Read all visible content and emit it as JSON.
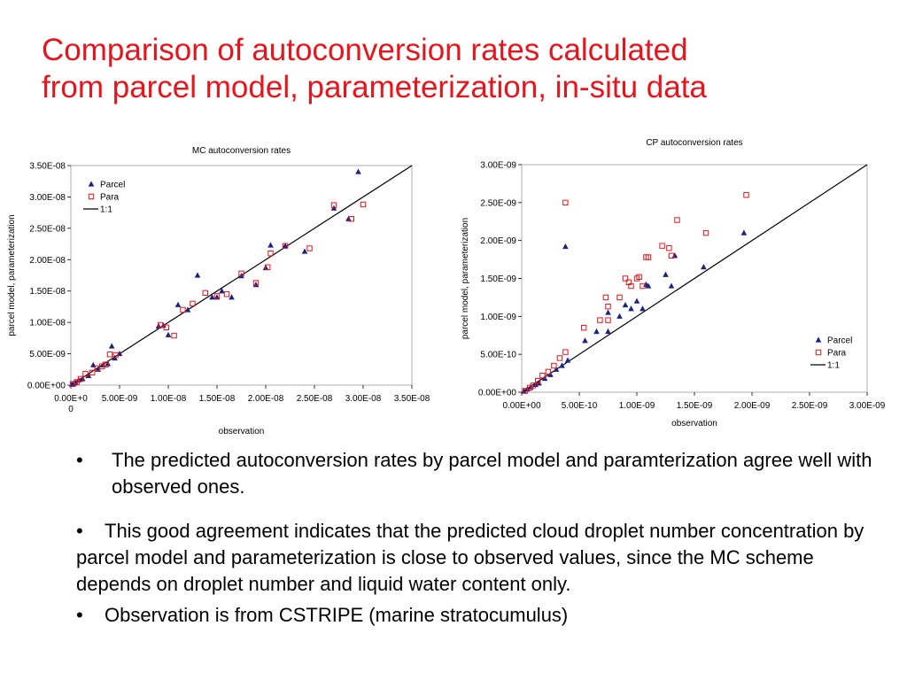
{
  "title_line1": "Comparison of autoconversion rates calculated",
  "title_line2": "from parcel model, parameterization, in-situ data",
  "bullets": [
    "The predicted autoconversion rates by parcel model and paramterization agree well with observed ones.",
    "This good agreement indicates that the predicted cloud droplet number concentration by parcel model and parameterization is close to observed values, since the MC scheme depends on droplet number and liquid water content only.",
    "Observation is from CSTRIPE (marine stratocumulus)"
  ],
  "bullet_symbol": "•",
  "colors": {
    "title": "#e8141c",
    "parcel": "#1a237e",
    "para": "#e8141c",
    "line": "#000000"
  },
  "chart_data": [
    {
      "type": "scatter",
      "title": "MC autoconversion rates",
      "xlabel": "observation",
      "ylabel": "parcel model, parameterization",
      "xlim": [
        0,
        3.5e-08
      ],
      "ylim": [
        0,
        3.5e-08
      ],
      "xticks": [
        "0.00E+0\n0",
        "5.00E-09",
        "1.00E-08",
        "1.50E-08",
        "2.00E-08",
        "2.50E-08",
        "3.00E-08",
        "3.50E-08"
      ],
      "yticks": [
        "0.00E+00",
        "5.00E-09",
        "1.00E-08",
        "1.50E-08",
        "2.00E-08",
        "2.50E-08",
        "3.00E-08",
        "3.50E-08"
      ],
      "legend": "top-left",
      "series": [
        {
          "name": "Parcel",
          "marker": "triangle",
          "points": [
            [
              1e-10,
              1e-10
            ],
            [
              3e-10,
              2e-10
            ],
            [
              5e-10,
              4e-10
            ],
            [
              8e-10,
              8e-10
            ],
            [
              1.2e-09,
              1e-09
            ],
            [
              1.8e-09,
              1.5e-09
            ],
            [
              2.3e-09,
              3.2e-09
            ],
            [
              2.8e-09,
              2.5e-09
            ],
            [
              3.3e-09,
              3.2e-09
            ],
            [
              3.8e-09,
              3.4e-09
            ],
            [
              4.2e-09,
              6.2e-09
            ],
            [
              4.5e-09,
              4.3e-09
            ],
            [
              5e-09,
              5e-09
            ],
            [
              9e-09,
              9.4e-09
            ],
            [
              9.5e-09,
              9.5e-09
            ],
            [
              1e-08,
              8e-09
            ],
            [
              1.1e-08,
              1.28e-08
            ],
            [
              1.2e-08,
              1.2e-08
            ],
            [
              1.3e-08,
              1.75e-08
            ],
            [
              1.45e-08,
              1.4e-08
            ],
            [
              1.5e-08,
              1.4e-08
            ],
            [
              1.55e-08,
              1.5e-08
            ],
            [
              1.65e-08,
              1.4e-08
            ],
            [
              1.75e-08,
              1.74e-08
            ],
            [
              1.9e-08,
              1.6e-08
            ],
            [
              2e-08,
              1.87e-08
            ],
            [
              2.05e-08,
              2.23e-08
            ],
            [
              2.2e-08,
              2.22e-08
            ],
            [
              2.4e-08,
              2.13e-08
            ],
            [
              2.7e-08,
              2.82e-08
            ],
            [
              2.85e-08,
              2.65e-08
            ],
            [
              2.95e-08,
              3.4e-08
            ]
          ]
        },
        {
          "name": "Para",
          "marker": "square",
          "points": [
            [
              2e-10,
              2e-10
            ],
            [
              6e-10,
              5e-10
            ],
            [
              1e-09,
              1e-09
            ],
            [
              1.5e-09,
              1.8e-09
            ],
            [
              2.2e-09,
              2e-09
            ],
            [
              2.7e-09,
              2.7e-09
            ],
            [
              3.2e-09,
              3e-09
            ],
            [
              3.6e-09,
              3.3e-09
            ],
            [
              4e-09,
              4.9e-09
            ],
            [
              4.6e-09,
              4.8e-09
            ],
            [
              9.2e-09,
              9.6e-09
            ],
            [
              9.8e-09,
              9.2e-09
            ],
            [
              1.06e-08,
              7.9e-09
            ],
            [
              1.15e-08,
              1.2e-08
            ],
            [
              1.25e-08,
              1.3e-08
            ],
            [
              1.38e-08,
              1.47e-08
            ],
            [
              1.5e-08,
              1.42e-08
            ],
            [
              1.6e-08,
              1.45e-08
            ],
            [
              1.75e-08,
              1.78e-08
            ],
            [
              1.9e-08,
              1.63e-08
            ],
            [
              2.02e-08,
              1.88e-08
            ],
            [
              2.05e-08,
              2.1e-08
            ],
            [
              2.2e-08,
              2.22e-08
            ],
            [
              2.45e-08,
              2.18e-08
            ],
            [
              2.7e-08,
              2.87e-08
            ],
            [
              2.88e-08,
              2.65e-08
            ],
            [
              3e-08,
              2.88e-08
            ]
          ]
        }
      ],
      "reference_line": {
        "name": "1:1"
      }
    },
    {
      "type": "scatter",
      "title": "CP autoconversion rates",
      "xlabel": "observation",
      "ylabel": "parcel model, parameterization",
      "xlim": [
        0,
        3e-09
      ],
      "ylim": [
        0,
        3e-09
      ],
      "xticks": [
        "0.00E+00",
        "5.00E-10",
        "1.00E-09",
        "1.50E-09",
        "2.00E-09",
        "2.50E-09",
        "3.00E-09"
      ],
      "yticks": [
        "0.00E+00",
        "5.00E-10",
        "1.00E-09",
        "1.50E-09",
        "2.00E-09",
        "2.50E-09",
        "3.00E-09"
      ],
      "legend": "bottom-right",
      "series": [
        {
          "name": "Parcel",
          "marker": "triangle",
          "points": [
            [
              2e-11,
              1e-11
            ],
            [
              5e-11,
              4e-11
            ],
            [
              8e-11,
              7e-11
            ],
            [
              1.2e-10,
              1e-10
            ],
            [
              1.5e-10,
              1.2e-10
            ],
            [
              2e-10,
              1.8e-10
            ],
            [
              2.5e-10,
              2.3e-10
            ],
            [
              3e-10,
              3e-10
            ],
            [
              3.5e-10,
              3.5e-10
            ],
            [
              4e-10,
              4.2e-10
            ],
            [
              3.8e-10,
              1.92e-09
            ],
            [
              5.5e-10,
              6.8e-10
            ],
            [
              6.5e-10,
              8e-10
            ],
            [
              7.5e-10,
              8e-10
            ],
            [
              7.5e-10,
              1.05e-09
            ],
            [
              8.5e-10,
              1e-09
            ],
            [
              9e-10,
              1.15e-09
            ],
            [
              9.5e-10,
              1.1e-09
            ],
            [
              1e-09,
              1.2e-09
            ],
            [
              1.05e-09,
              1.1e-09
            ],
            [
              1.08e-09,
              1.42e-09
            ],
            [
              1.1e-09,
              1.4e-09
            ],
            [
              1.25e-09,
              1.55e-09
            ],
            [
              1.3e-09,
              1.4e-09
            ],
            [
              1.33e-09,
              1.8e-09
            ],
            [
              1.58e-09,
              1.65e-09
            ],
            [
              1.93e-09,
              2.1e-09
            ]
          ]
        },
        {
          "name": "Para",
          "marker": "square",
          "points": [
            [
              3e-11,
              2e-11
            ],
            [
              7e-11,
              6e-11
            ],
            [
              1e-10,
              9e-11
            ],
            [
              1.4e-10,
              1.5e-10
            ],
            [
              1.8e-10,
              2.2e-10
            ],
            [
              2.3e-10,
              2.7e-10
            ],
            [
              2.8e-10,
              3.5e-10
            ],
            [
              3.3e-10,
              4.5e-10
            ],
            [
              3.8e-10,
              5.3e-10
            ],
            [
              3.8e-10,
              2.5e-09
            ],
            [
              5.4e-10,
              8.5e-10
            ],
            [
              6.8e-10,
              9.5e-10
            ],
            [
              7.3e-10,
              1.25e-09
            ],
            [
              7.5e-10,
              1.13e-09
            ],
            [
              7.5e-10,
              9.5e-10
            ],
            [
              8.5e-10,
              1.25e-09
            ],
            [
              9e-10,
              1.5e-09
            ],
            [
              9.3e-10,
              1.45e-09
            ],
            [
              9.5e-10,
              1.4e-09
            ],
            [
              1e-09,
              1.5e-09
            ],
            [
              1.02e-09,
              1.52e-09
            ],
            [
              1.05e-09,
              1.4e-09
            ],
            [
              1.08e-09,
              1.78e-09
            ],
            [
              1.1e-09,
              1.78e-09
            ],
            [
              1.22e-09,
              1.93e-09
            ],
            [
              1.28e-09,
              1.9e-09
            ],
            [
              1.3e-09,
              1.8e-09
            ],
            [
              1.35e-09,
              2.27e-09
            ],
            [
              1.6e-09,
              2.1e-09
            ],
            [
              1.95e-09,
              2.6e-09
            ]
          ]
        }
      ],
      "reference_line": {
        "name": "1:1"
      }
    }
  ]
}
